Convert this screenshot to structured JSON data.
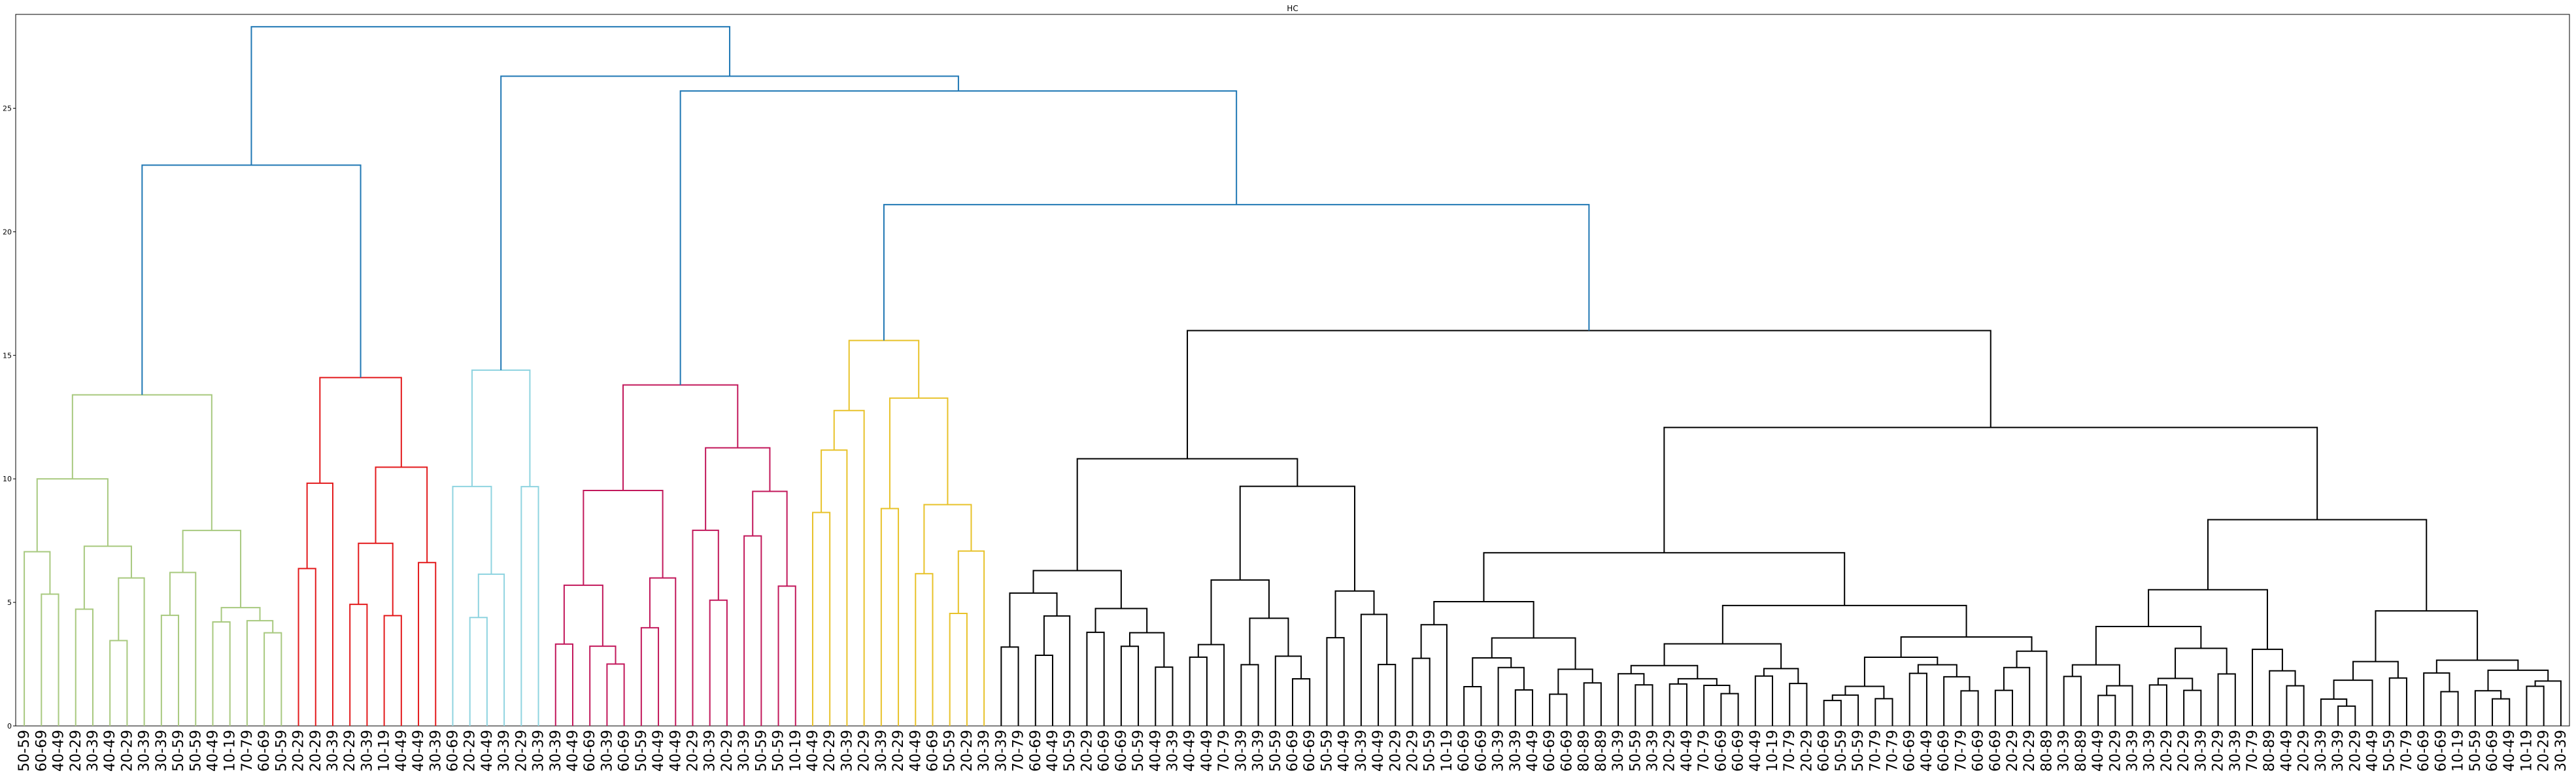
{
  "chart_data": {
    "type": "dendrogram",
    "title": "HC",
    "ylim": [
      0,
      28.8
    ],
    "yticks": [
      0,
      5,
      10,
      15,
      20,
      25
    ],
    "leaves": [
      "50-59",
      "60-69",
      "40-49",
      "20-29",
      "30-39",
      "40-49",
      "20-29",
      "30-39",
      "30-39",
      "50-59",
      "50-59",
      "40-49",
      "10-19",
      "70-79",
      "60-69",
      "50-59",
      "20-29",
      "20-29",
      "30-39",
      "20-29",
      "30-39",
      "10-19",
      "40-49",
      "40-49",
      "30-39",
      "60-69",
      "20-29",
      "40-49",
      "30-39",
      "20-29",
      "30-39",
      "30-39",
      "40-49",
      "60-69",
      "30-39",
      "60-69",
      "50-59",
      "40-49",
      "40-49",
      "20-29",
      "30-39",
      "20-29",
      "30-39",
      "50-59",
      "50-59",
      "10-19",
      "40-49",
      "20-29",
      "30-39",
      "20-29",
      "30-39",
      "20-29",
      "40-49",
      "60-69",
      "50-59",
      "20-29",
      "30-39",
      "30-39",
      "70-79",
      "60-69",
      "40-49",
      "50-59",
      "20-29",
      "60-69",
      "60-69",
      "50-59",
      "40-49",
      "30-39",
      "40-49",
      "40-49",
      "70-79",
      "30-39",
      "30-39",
      "50-59",
      "60-69",
      "60-69",
      "50-59",
      "40-49",
      "30-39",
      "40-49",
      "20-29",
      "20-29",
      "50-59",
      "10-19",
      "60-69",
      "60-69",
      "30-39",
      "30-39",
      "40-49",
      "60-69",
      "60-69",
      "80-89",
      "80-89",
      "30-39",
      "50-59",
      "30-39",
      "20-29",
      "40-49",
      "70-79",
      "60-69",
      "60-69",
      "40-49",
      "10-19",
      "70-79",
      "20-29",
      "60-69",
      "50-59",
      "50-59",
      "70-79",
      "70-79",
      "60-69",
      "40-49",
      "60-69",
      "70-79",
      "60-69",
      "60-69",
      "20-29",
      "20-29",
      "80-89",
      "30-39",
      "80-89",
      "40-49",
      "20-29",
      "30-39",
      "30-39",
      "20-29",
      "20-29",
      "30-39",
      "20-29",
      "30-39",
      "70-79",
      "80-89",
      "40-49",
      "20-29",
      "30-39",
      "30-39",
      "20-29",
      "40-49",
      "50-59",
      "70-79",
      "60-69",
      "60-69",
      "10-19",
      "50-59",
      "60-69",
      "40-49",
      "10-19",
      "20-29",
      "30-39"
    ],
    "clusters": [
      {
        "color": "#a8c97f",
        "leaf_range": [
          0,
          15
        ],
        "merge_height": 13.4
      },
      {
        "color": "#e31a1c",
        "leaf_range": [
          16,
          24
        ],
        "merge_height": 14.1
      },
      {
        "color": "#8fd4e0",
        "leaf_range": [
          25,
          30
        ],
        "merge_height": 14.4
      },
      {
        "color": "#c2185b",
        "leaf_range": [
          31,
          45
        ],
        "merge_height": 13.8
      },
      {
        "color": "#e8c22a",
        "leaf_range": [
          46,
          56
        ],
        "merge_height": 15.6
      },
      {
        "color": "#000000",
        "leaf_range": [
          57,
          148
        ],
        "merge_height": 16.0
      }
    ],
    "above_threshold_color": "#1f77b4",
    "top_merges": [
      {
        "children": [
          "c0",
          "c1"
        ],
        "height": 22.7
      },
      {
        "children": [
          "c4",
          "c5"
        ],
        "height": 21.1
      },
      {
        "children": [
          "c3",
          "m1"
        ],
        "height": 25.7
      },
      {
        "children": [
          "c2",
          "m2"
        ],
        "height": 26.3
      },
      {
        "children": [
          "m0",
          "m3"
        ],
        "height": 28.3
      }
    ]
  }
}
